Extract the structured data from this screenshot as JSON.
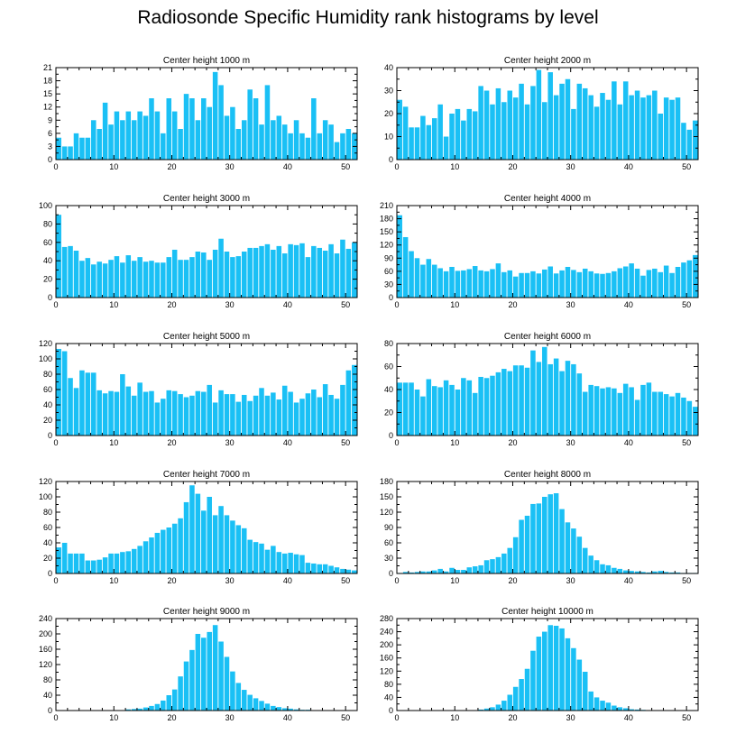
{
  "title": "Radiosonde Specific Humidity rank histograms by level",
  "colors": {
    "bar": "#1ac0f5",
    "axis": "#000000",
    "background": "#ffffff"
  },
  "chart_data": [
    {
      "type": "bar",
      "title": "Center height 1000 m",
      "xlim": [
        0,
        52
      ],
      "xticks": [
        0,
        10,
        20,
        30,
        40,
        50
      ],
      "ylim": [
        0,
        21
      ],
      "yticks": [
        0,
        3,
        6,
        9,
        12,
        15,
        18,
        21
      ],
      "values": [
        5,
        3,
        3,
        6,
        5,
        5,
        9,
        7,
        13,
        8,
        11,
        9,
        11,
        9,
        11,
        10,
        14,
        11,
        6,
        14,
        11,
        7,
        15,
        14,
        9,
        14,
        12,
        20,
        17,
        10,
        12,
        7,
        9,
        16,
        14,
        8,
        17,
        9,
        10,
        8,
        6,
        9,
        6,
        5,
        14,
        6,
        9,
        8,
        4,
        6,
        7,
        6
      ]
    },
    {
      "type": "bar",
      "title": "Center height 2000 m",
      "xlim": [
        0,
        52
      ],
      "xticks": [
        0,
        10,
        20,
        30,
        40,
        50
      ],
      "ylim": [
        0,
        40
      ],
      "yticks": [
        0,
        10,
        20,
        30,
        40
      ],
      "values": [
        26,
        23,
        14,
        14,
        19,
        15,
        18,
        24,
        10,
        20,
        22,
        17,
        22,
        21,
        32,
        30,
        24,
        31,
        25,
        30,
        27,
        33,
        24,
        32,
        39,
        25,
        38,
        28,
        33,
        35,
        22,
        33,
        31,
        28,
        23,
        29,
        26,
        34,
        24,
        34,
        28,
        30,
        27,
        28,
        30,
        20,
        27,
        26,
        27,
        16,
        13,
        17
      ]
    },
    {
      "type": "bar",
      "title": "Center height 3000 m",
      "xlim": [
        0,
        52
      ],
      "xticks": [
        0,
        10,
        20,
        30,
        40,
        50
      ],
      "ylim": [
        0,
        100
      ],
      "yticks": [
        0,
        20,
        40,
        60,
        80,
        100
      ],
      "values": [
        90,
        55,
        56,
        51,
        40,
        43,
        36,
        39,
        37,
        41,
        45,
        38,
        46,
        40,
        44,
        39,
        40,
        38,
        38,
        44,
        52,
        41,
        41,
        44,
        50,
        49,
        41,
        52,
        64,
        50,
        44,
        45,
        50,
        54,
        54,
        56,
        58,
        52,
        56,
        48,
        58,
        57,
        59,
        44,
        56,
        54,
        51,
        58,
        48,
        63,
        53,
        60
      ]
    },
    {
      "type": "bar",
      "title": "Center height 4000 m",
      "xlim": [
        0,
        52
      ],
      "xticks": [
        0,
        10,
        20,
        30,
        40,
        50
      ],
      "ylim": [
        0,
        210
      ],
      "yticks": [
        0,
        30,
        60,
        90,
        120,
        150,
        180,
        210
      ],
      "values": [
        188,
        138,
        106,
        90,
        75,
        88,
        75,
        67,
        60,
        70,
        61,
        62,
        65,
        72,
        62,
        60,
        65,
        78,
        58,
        62,
        48,
        56,
        56,
        60,
        55,
        64,
        71,
        55,
        62,
        70,
        63,
        58,
        66,
        60,
        55,
        54,
        56,
        60,
        67,
        71,
        78,
        66,
        50,
        63,
        66,
        58,
        73,
        56,
        70,
        80,
        85,
        97
      ]
    },
    {
      "type": "bar",
      "title": "Center height 5000 m",
      "xlim": [
        0,
        52
      ],
      "xticks": [
        0,
        10,
        20,
        30,
        40,
        50
      ],
      "ylim": [
        0,
        120
      ],
      "yticks": [
        0,
        20,
        40,
        60,
        80,
        100,
        120
      ],
      "values": [
        113,
        110,
        75,
        62,
        85,
        82,
        82,
        59,
        55,
        58,
        57,
        80,
        64,
        52,
        69,
        57,
        58,
        43,
        48,
        59,
        58,
        54,
        50,
        52,
        58,
        57,
        66,
        43,
        59,
        54,
        54,
        44,
        53,
        45,
        52,
        62,
        52,
        56,
        47,
        65,
        57,
        43,
        48,
        55,
        60,
        50,
        67,
        53,
        48,
        66,
        85,
        92
      ]
    },
    {
      "type": "bar",
      "title": "Center height 6000 m",
      "xlim": [
        0,
        52
      ],
      "xticks": [
        0,
        10,
        20,
        30,
        40,
        50
      ],
      "ylim": [
        0,
        80
      ],
      "yticks": [
        0,
        20,
        40,
        60,
        80
      ],
      "values": [
        46,
        46,
        46,
        40,
        34,
        49,
        43,
        42,
        48,
        44,
        40,
        50,
        48,
        37,
        51,
        50,
        52,
        55,
        58,
        56,
        61,
        61,
        59,
        74,
        64,
        77,
        62,
        67,
        56,
        65,
        62,
        54,
        38,
        44,
        43,
        41,
        42,
        41,
        37,
        45,
        42,
        31,
        44,
        46,
        38,
        38,
        36,
        34,
        37,
        33,
        30,
        25
      ]
    },
    {
      "type": "bar",
      "title": "Center height 7000 m",
      "xlim": [
        0,
        52
      ],
      "xticks": [
        0,
        10,
        20,
        30,
        40,
        50
      ],
      "ylim": [
        0,
        120
      ],
      "yticks": [
        0,
        20,
        40,
        60,
        80,
        100,
        120
      ],
      "values": [
        34,
        40,
        26,
        26,
        26,
        17,
        17,
        18,
        21,
        26,
        26,
        28,
        29,
        32,
        36,
        42,
        47,
        53,
        57,
        60,
        65,
        72,
        93,
        115,
        104,
        82,
        100,
        76,
        88,
        76,
        69,
        63,
        59,
        44,
        41,
        39,
        31,
        36,
        28,
        26,
        27,
        25,
        24,
        14,
        13,
        12,
        12,
        10,
        8,
        6,
        5,
        4
      ]
    },
    {
      "type": "bar",
      "title": "Center height 8000 m",
      "xlim": [
        0,
        52
      ],
      "xticks": [
        0,
        10,
        20,
        30,
        40,
        50
      ],
      "ylim": [
        0,
        180
      ],
      "yticks": [
        0,
        30,
        60,
        90,
        120,
        150,
        180
      ],
      "values": [
        1,
        3,
        2,
        3,
        4,
        4,
        6,
        9,
        4,
        11,
        7,
        7,
        12,
        14,
        16,
        26,
        28,
        32,
        39,
        50,
        71,
        105,
        113,
        136,
        137,
        150,
        155,
        157,
        126,
        100,
        88,
        72,
        50,
        35,
        26,
        18,
        16,
        11,
        9,
        6,
        5,
        4,
        3,
        2,
        4,
        5,
        3,
        2,
        2,
        1,
        1,
        1
      ]
    },
    {
      "type": "bar",
      "title": "Center height 9000 m",
      "xlim": [
        0,
        52
      ],
      "xticks": [
        0,
        10,
        20,
        30,
        40,
        50
      ],
      "ylim": [
        0,
        240
      ],
      "yticks": [
        0,
        40,
        80,
        120,
        160,
        200,
        240
      ],
      "values": [
        0,
        0,
        0,
        0,
        0,
        0,
        0,
        0,
        0,
        0,
        0,
        0,
        3,
        4,
        5,
        8,
        12,
        17,
        26,
        40,
        55,
        89,
        128,
        158,
        200,
        190,
        205,
        223,
        180,
        140,
        102,
        72,
        54,
        41,
        32,
        25,
        18,
        12,
        9,
        6,
        5,
        3,
        2,
        2,
        1,
        1,
        0,
        0,
        0,
        0,
        0,
        0
      ]
    },
    {
      "type": "bar",
      "title": "Center height 10000 m",
      "xlim": [
        0,
        52
      ],
      "xticks": [
        0,
        10,
        20,
        30,
        40,
        50
      ],
      "ylim": [
        0,
        280
      ],
      "yticks": [
        0,
        40,
        80,
        120,
        160,
        200,
        240,
        280
      ],
      "values": [
        0,
        0,
        0,
        0,
        0,
        0,
        0,
        0,
        0,
        0,
        0,
        0,
        0,
        1,
        3,
        6,
        10,
        18,
        30,
        48,
        72,
        96,
        127,
        182,
        225,
        240,
        260,
        258,
        250,
        220,
        190,
        155,
        118,
        58,
        40,
        30,
        24,
        15,
        10,
        7,
        4,
        3,
        2,
        1,
        1,
        0,
        0,
        0,
        0,
        0,
        0,
        0
      ]
    }
  ]
}
